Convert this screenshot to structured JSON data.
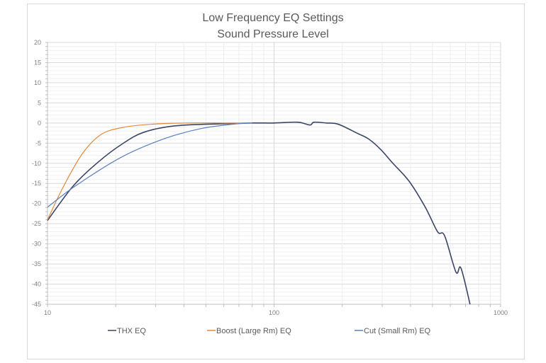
{
  "chart_data": {
    "type": "line",
    "title": "Low Frequency EQ Settings",
    "subtitle": "Sound Pressure Level",
    "xlabel": "",
    "ylabel": "",
    "x_scale": "log",
    "xlim": [
      10,
      1000
    ],
    "ylim": [
      -45,
      20
    ],
    "x_ticks": [
      "10",
      "100",
      "1000"
    ],
    "y_ticks": [
      "20",
      "15",
      "10",
      "5",
      "0",
      "-5",
      "-10",
      "-15",
      "-20",
      "-25",
      "-30",
      "-35",
      "-40",
      "-45"
    ],
    "grid": true,
    "legend_position": "bottom",
    "series": [
      {
        "name": "THX EQ",
        "color": "#3b4566",
        "x": [
          10,
          13,
          16.9,
          21.5,
          26.6,
          36.6,
          58.8,
          80,
          100,
          127,
          144,
          150,
          170,
          192,
          232,
          262,
          296,
          332,
          395,
          466,
          527,
          566,
          635,
          668,
          733
        ],
        "y": [
          -24.2,
          -15.6,
          -9.5,
          -5.1,
          -2.3,
          -0.7,
          -0.2,
          0,
          0,
          0.2,
          -0.5,
          0.2,
          0,
          -0.3,
          -2.5,
          -4,
          -6.6,
          -9.8,
          -14.5,
          -21,
          -27,
          -28,
          -37,
          -36,
          -45
        ]
      },
      {
        "name": "Boost (Large Rm) EQ",
        "color": "#e08a3c",
        "x": [
          10,
          11.8,
          14.3,
          17.3,
          21.5,
          28.7,
          41,
          60,
          80
        ],
        "y": [
          -24,
          -15.6,
          -7.5,
          -2.8,
          -1.1,
          -0.3,
          0,
          0,
          0
        ]
      },
      {
        "name": "Cut (Small Rm) EQ",
        "color": "#5b7fbf",
        "x": [
          10,
          13.3,
          21,
          32.4,
          47.4,
          66,
          80
        ],
        "y": [
          -20.9,
          -15.6,
          -8.6,
          -4,
          -1.4,
          -0.3,
          0
        ]
      }
    ]
  }
}
